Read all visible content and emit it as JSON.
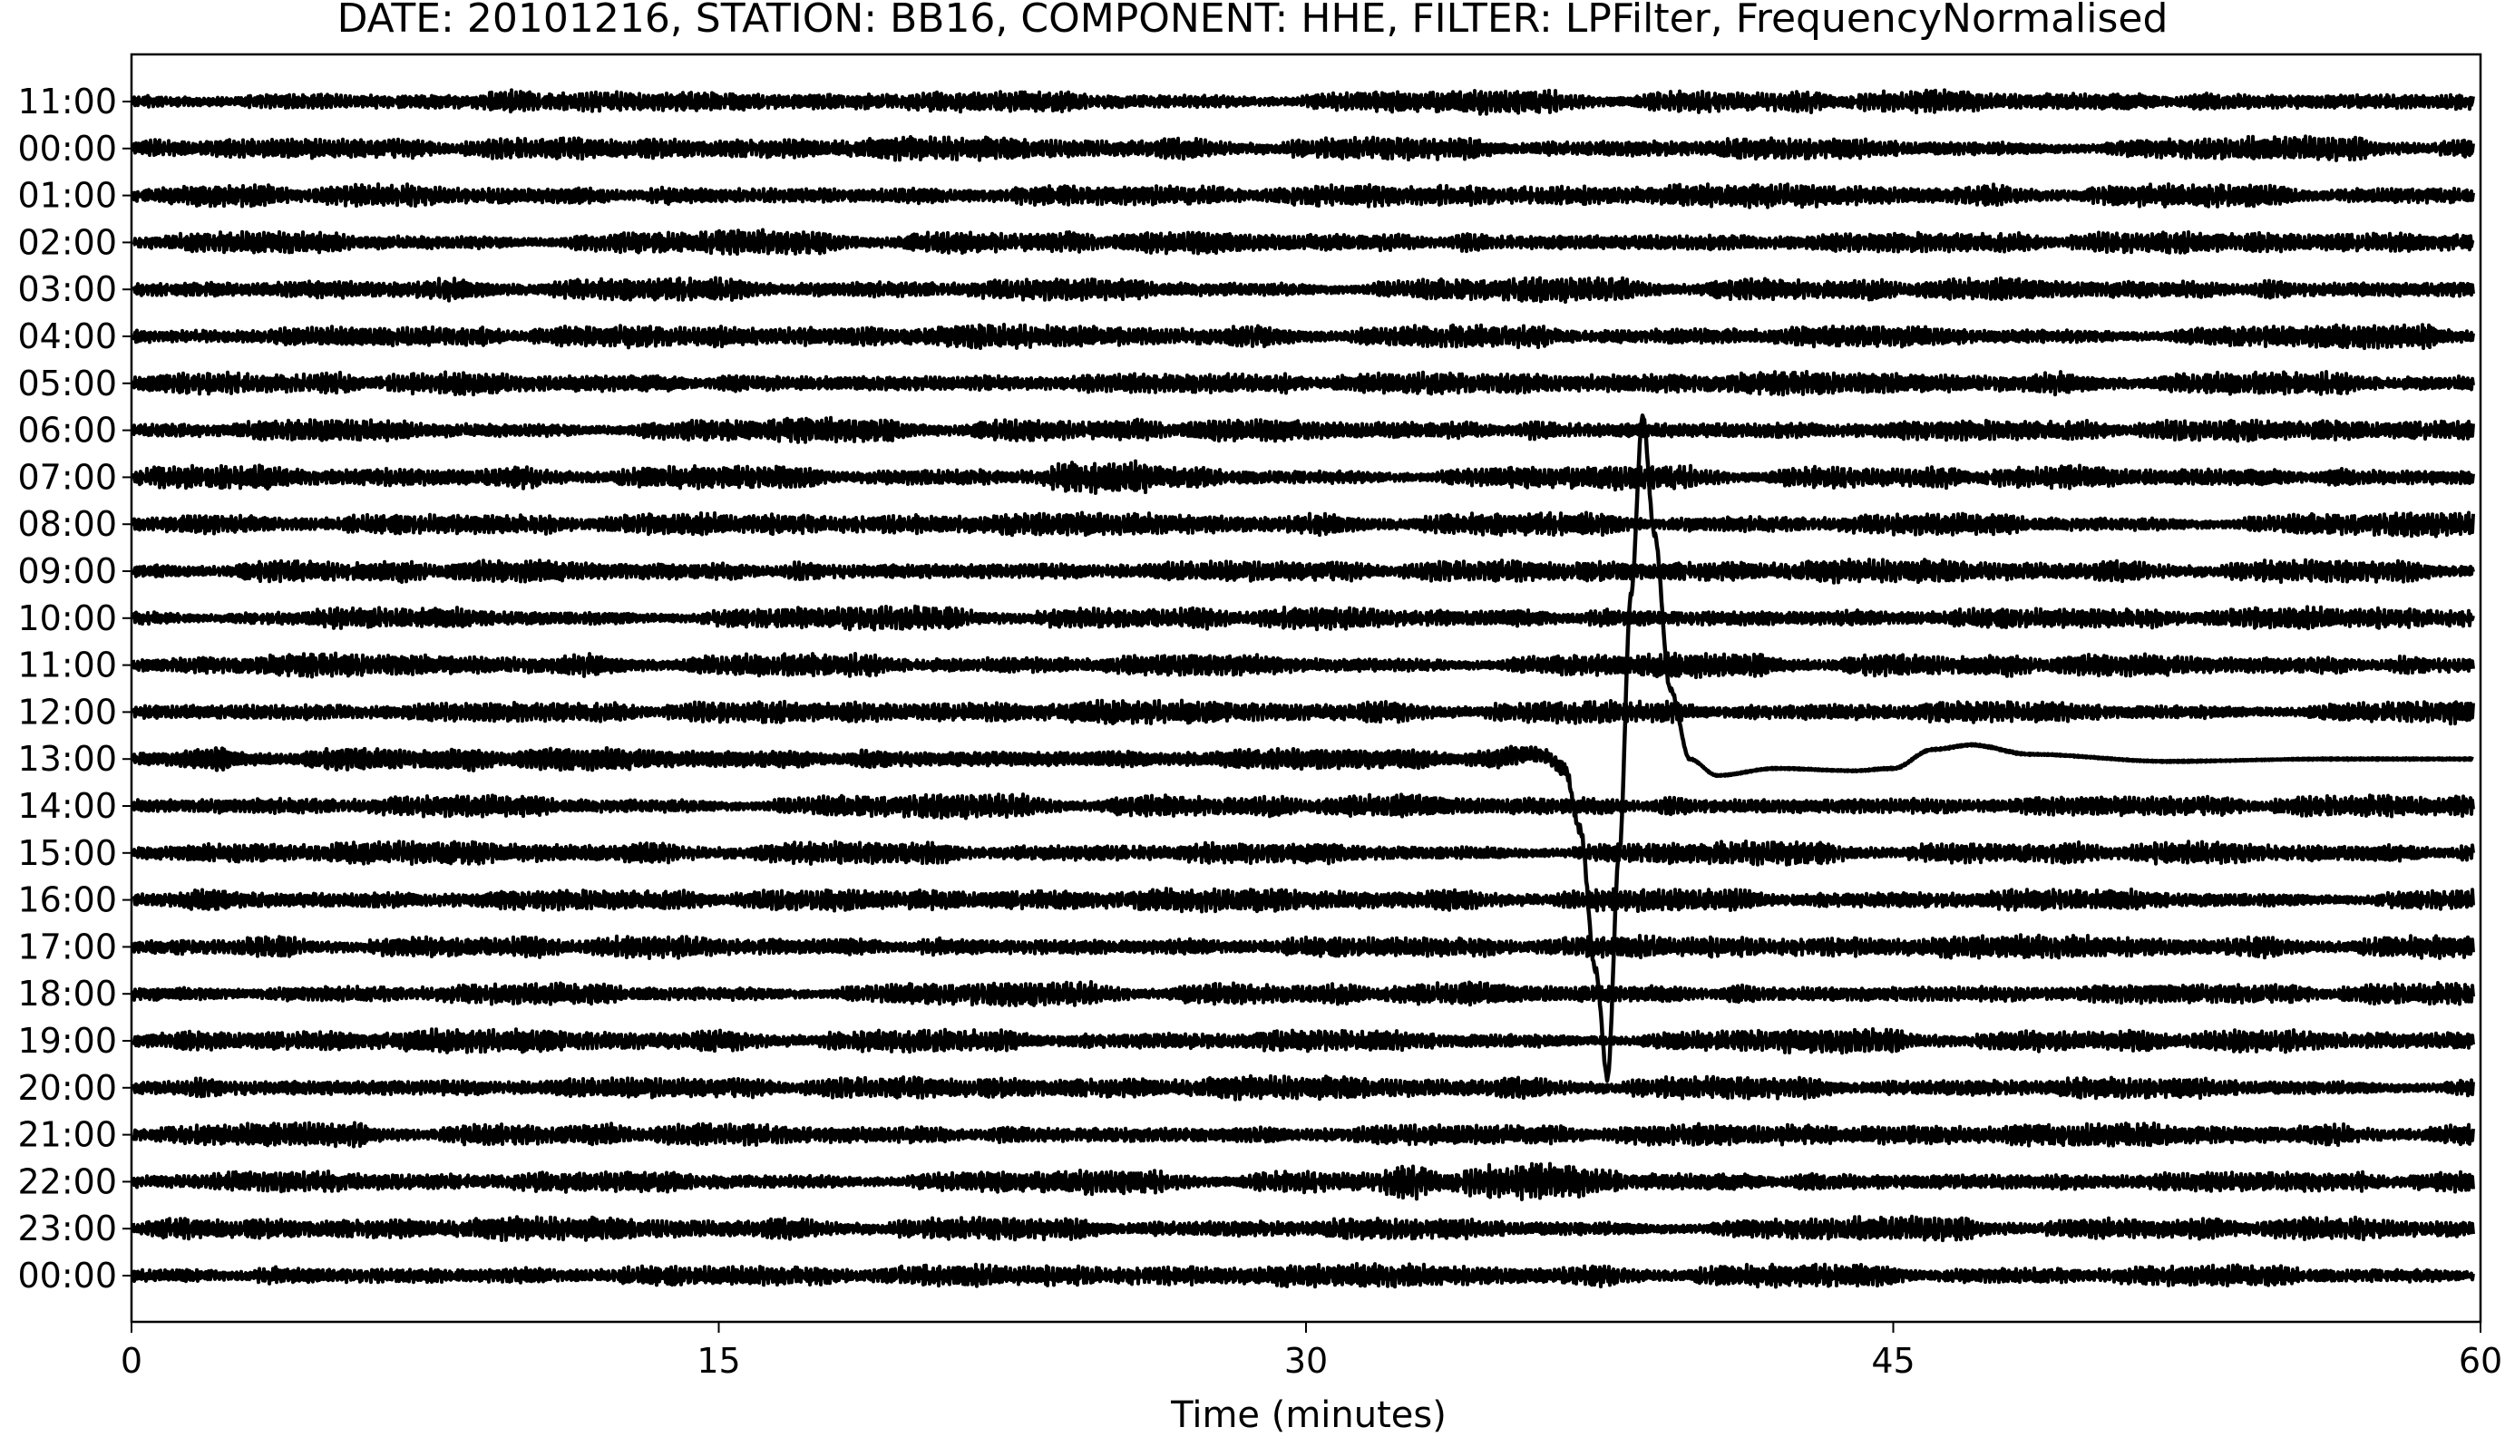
{
  "chart_data": {
    "type": "line",
    "subtype": "helicorder",
    "title": "DATE: 20101216, STATION: BB16, COMPONENT: HHE, FILTER: LPFilter, FrequencyNormalised",
    "xlabel": "Time (minutes)",
    "ylabel": "",
    "xlim": [
      0,
      60
    ],
    "x_ticks": [
      "0",
      "15",
      "30",
      "45",
      "60"
    ],
    "x_tick_values": [
      0,
      15,
      30,
      45,
      60
    ],
    "row_labels": [
      "11:00",
      "00:00",
      "01:00",
      "02:00",
      "03:00",
      "04:00",
      "05:00",
      "06:00",
      "07:00",
      "08:00",
      "09:00",
      "10:00",
      "11:00",
      "12:00",
      "13:00",
      "14:00",
      "15:00",
      "16:00",
      "17:00",
      "18:00",
      "19:00",
      "20:00",
      "21:00",
      "22:00",
      "23:00",
      "00:00"
    ],
    "grid": false,
    "legend": "none",
    "trace_color": "#000000",
    "background_noise": {
      "description_values": "continuous low-amplitude band-limited noise on every row",
      "noise_amplitude_rows": 0.22
    },
    "event": {
      "row_label": "13:00",
      "onset_minute": 36.5,
      "peak_up_minute": 38.5,
      "peak_up_rows": 7.3,
      "peak_down_minute": 37.8,
      "peak_down_rows": -6.8,
      "coda_end_minute": 60,
      "coda_points": [
        [
          35.0,
          0.05
        ],
        [
          36.0,
          0.1
        ],
        [
          36.6,
          -0.2
        ],
        [
          37.0,
          -1.5
        ],
        [
          37.4,
          -4.5
        ],
        [
          37.7,
          -6.8
        ],
        [
          38.0,
          -2.0
        ],
        [
          38.3,
          3.5
        ],
        [
          38.6,
          7.3
        ],
        [
          38.9,
          4.8
        ],
        [
          39.3,
          1.5
        ],
        [
          39.8,
          0.0
        ],
        [
          40.5,
          -0.35
        ],
        [
          42.0,
          -0.2
        ],
        [
          44.0,
          -0.25
        ],
        [
          45.0,
          -0.2
        ],
        [
          46.0,
          0.2
        ],
        [
          47.0,
          0.3
        ],
        [
          48.5,
          0.1
        ],
        [
          52.0,
          -0.05
        ],
        [
          56.0,
          0.0
        ],
        [
          60.0,
          0.0
        ]
      ]
    },
    "noisy_bursts": [
      {
        "row_label": "07:00",
        "start_minute": 23.5,
        "end_minute": 26.0
      },
      {
        "row_label": "22:00",
        "start_minute": 32.0,
        "end_minute": 38.0
      }
    ]
  }
}
